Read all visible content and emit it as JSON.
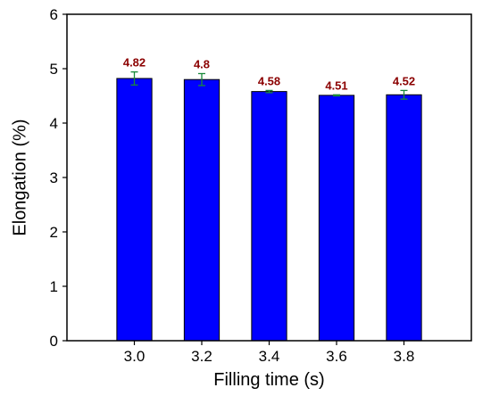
{
  "chart_data": {
    "type": "bar",
    "title": "",
    "xlabel": "Filling time (s)",
    "ylabel": "Elongation (%)",
    "ylim": [
      0,
      6
    ],
    "yticks": [
      0,
      1,
      2,
      3,
      4,
      5,
      6
    ],
    "grid": false,
    "categories": [
      "3.0",
      "3.2",
      "3.4",
      "3.6",
      "3.8"
    ],
    "values": [
      4.82,
      4.8,
      4.58,
      4.51,
      4.52
    ],
    "data_labels": [
      "4.82",
      "4.8",
      "4.58",
      "4.51",
      "4.52"
    ],
    "error": [
      0.12,
      0.11,
      0.02,
      0.01,
      0.08
    ],
    "colors": {
      "bar": "#0000ff",
      "bar_edge": "#000000",
      "error_bar": "#1a8a3a",
      "data_label": "#8b0000",
      "axis": "#000000"
    }
  }
}
